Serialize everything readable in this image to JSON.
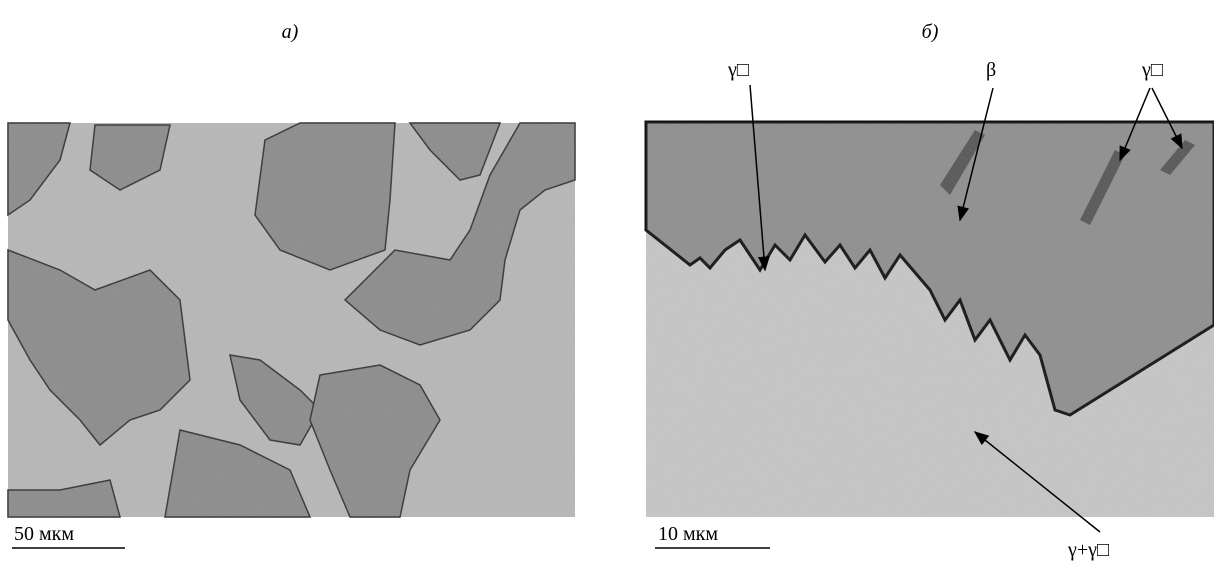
{
  "panels": [
    {
      "label": "а)",
      "scale_bar": "50 мкм"
    },
    {
      "label": "б)",
      "scale_bar": "10 мкм",
      "annotations": [
        "γ□",
        "β",
        "γ□",
        "γ+γ□"
      ]
    }
  ]
}
